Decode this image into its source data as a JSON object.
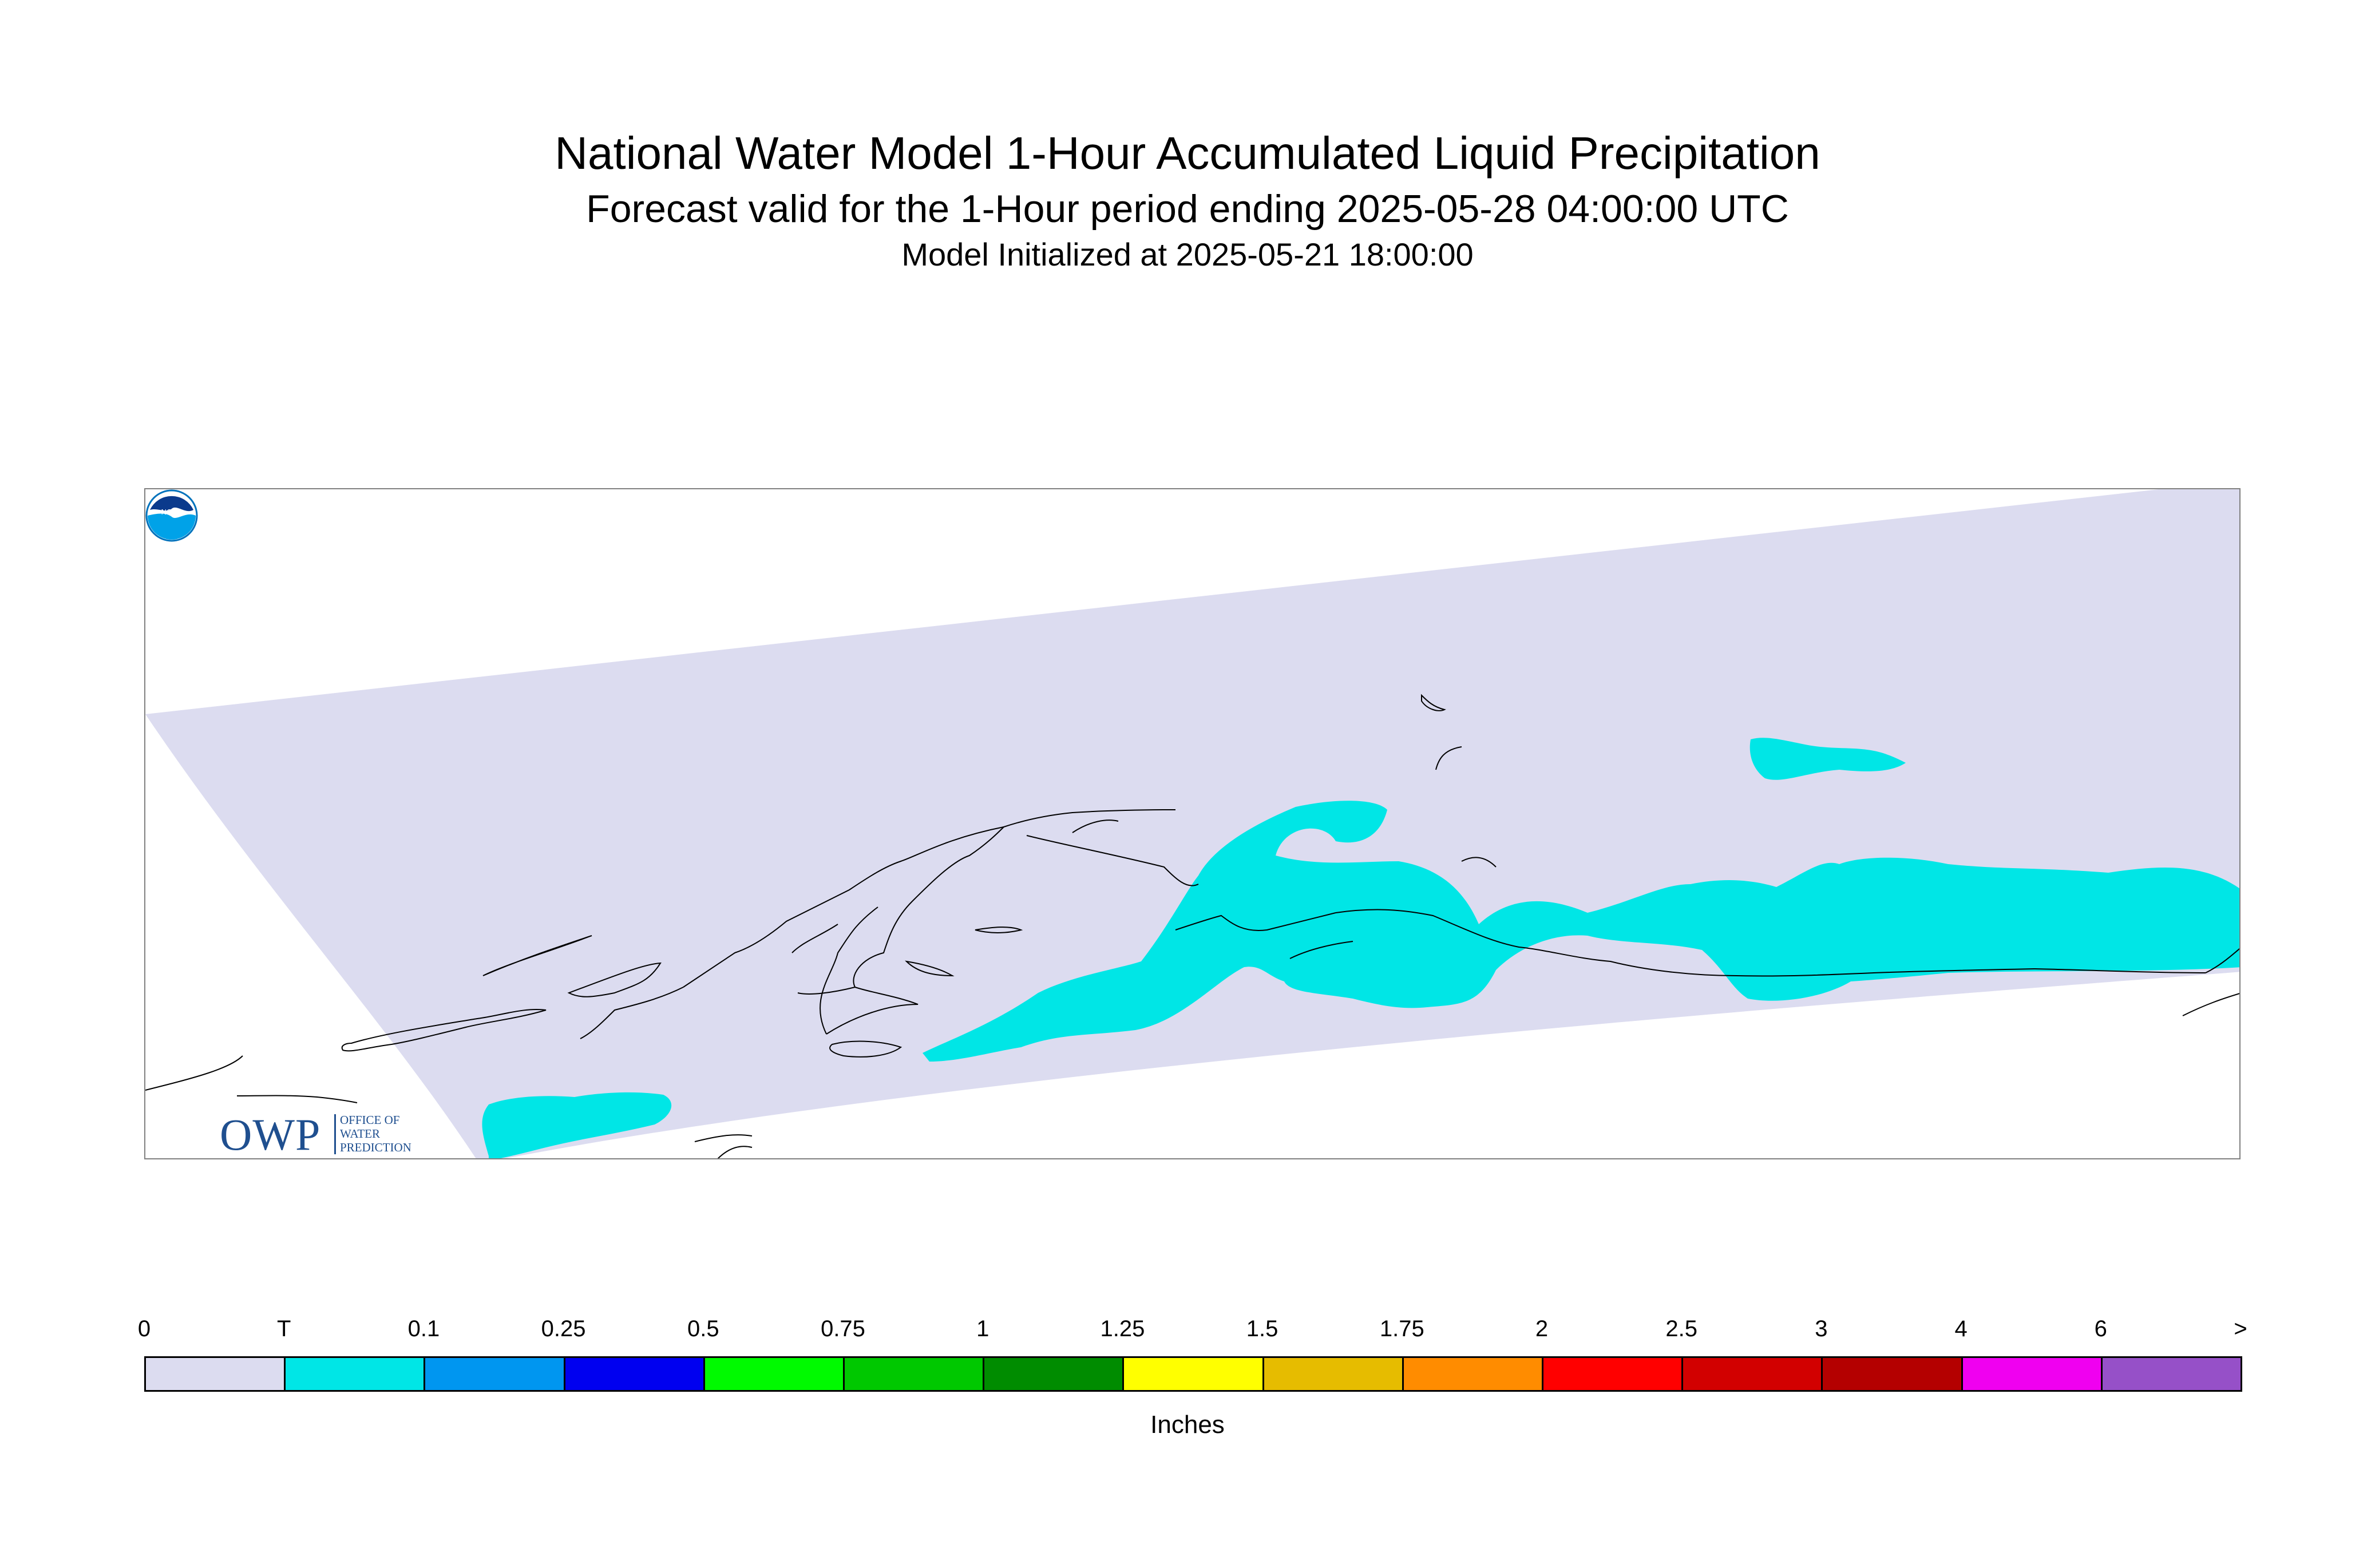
{
  "title": "National Water Model 1-Hour Accumulated Liquid Precipitation",
  "subtitle": "Forecast valid for the 1-Hour period ending 2025-05-28 04:00:00 UTC",
  "init_text": "Model Initialized at 2025-05-21 18:00:00",
  "logo": {
    "owp_letters": "OWP",
    "owp_line1": "OFFICE OF",
    "owp_line2": "WATER",
    "owp_line3": "PREDICTION",
    "noaa_text": "NOAA"
  },
  "legend": {
    "units": "Inches",
    "tick_labels": [
      "0",
      "T",
      "0.1",
      "0.25",
      "0.5",
      "0.75",
      "1",
      "1.25",
      "1.5",
      "1.75",
      "2",
      "2.5",
      "3",
      "4",
      "6",
      ">"
    ],
    "colors": [
      "#dcdcf0",
      "#00e6e6",
      "#0096f0",
      "#0000f0",
      "#00fa00",
      "#00c800",
      "#008c00",
      "#ffff00",
      "#e6bc00",
      "#ff8c00",
      "#ff0000",
      "#d20000",
      "#b40000",
      "#f000f0",
      "#9650c8"
    ]
  },
  "colors": {
    "domain_fill": "#dcdcf0",
    "trace_precip": "#00e6e6",
    "coastline": "#000000",
    "owp_blue": "#1f4f8f",
    "noaa_blue": "#0072bc"
  }
}
